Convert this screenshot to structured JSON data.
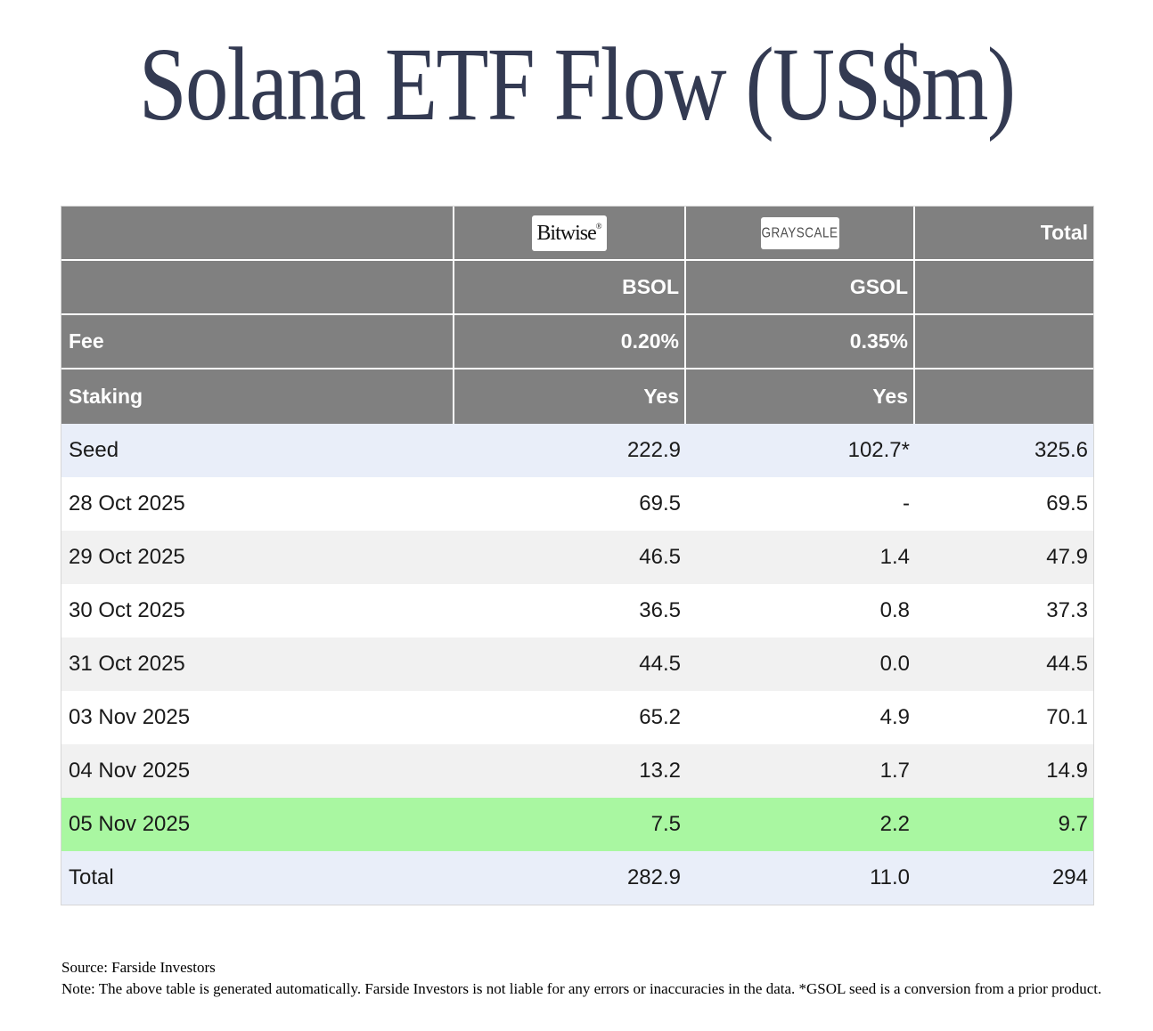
{
  "chart_data": {
    "type": "table",
    "title": "Solana ETF Flow (US$m)",
    "columns": [
      "",
      "BSOL",
      "GSOL",
      "Total"
    ],
    "issuers": [
      {
        "name": "Bitwise",
        "logo_text": "Bitwise",
        "reg_mark": "®",
        "ticker": "BSOL",
        "fee": "0.20%",
        "staking": "Yes"
      },
      {
        "name": "Grayscale",
        "logo_text": "GRAYSCALE",
        "ticker": "GSOL",
        "fee": "0.35%",
        "staking": "Yes"
      }
    ],
    "fee_label": "Fee",
    "staking_label": "Staking",
    "rows": [
      {
        "label": "Seed",
        "BSOL": "222.9",
        "GSOL": "102.7*",
        "Total": "325.6"
      },
      {
        "label": "28 Oct 2025",
        "BSOL": "69.5",
        "GSOL": "-",
        "Total": "69.5"
      },
      {
        "label": "29 Oct 2025",
        "BSOL": "46.5",
        "GSOL": "1.4",
        "Total": "47.9"
      },
      {
        "label": "30 Oct 2025",
        "BSOL": "36.5",
        "GSOL": "0.8",
        "Total": "37.3"
      },
      {
        "label": "31 Oct 2025",
        "BSOL": "44.5",
        "GSOL": "0.0",
        "Total": "44.5"
      },
      {
        "label": "03 Nov 2025",
        "BSOL": "65.2",
        "GSOL": "4.9",
        "Total": "70.1"
      },
      {
        "label": "04 Nov 2025",
        "BSOL": "13.2",
        "GSOL": "1.7",
        "Total": "14.9"
      },
      {
        "label": "05 Nov 2025",
        "BSOL": "7.5",
        "GSOL": "2.2",
        "Total": "9.7"
      },
      {
        "label": "Total",
        "BSOL": "282.9",
        "GSOL": "11.0",
        "Total": "294"
      }
    ],
    "highlighted_row": "05 Nov 2025",
    "legend_position": "none",
    "grid": false
  },
  "footer": {
    "source": "Source: Farside Investors",
    "note": "Note: The above table is generated automatically. Farside Investors is not liable for any errors or inaccuracies in the data. *GSOL seed is a conversion from a prior product."
  },
  "colors": {
    "title_text": "#333a52",
    "header_bg": "#808080",
    "header_text": "#ffffff",
    "row_seed_total_bg": "#e9eef9",
    "row_alt_bg": "#f1f1f1",
    "row_highlight_bg": "#a9f7a1",
    "body_text": "#1a1a1a"
  }
}
